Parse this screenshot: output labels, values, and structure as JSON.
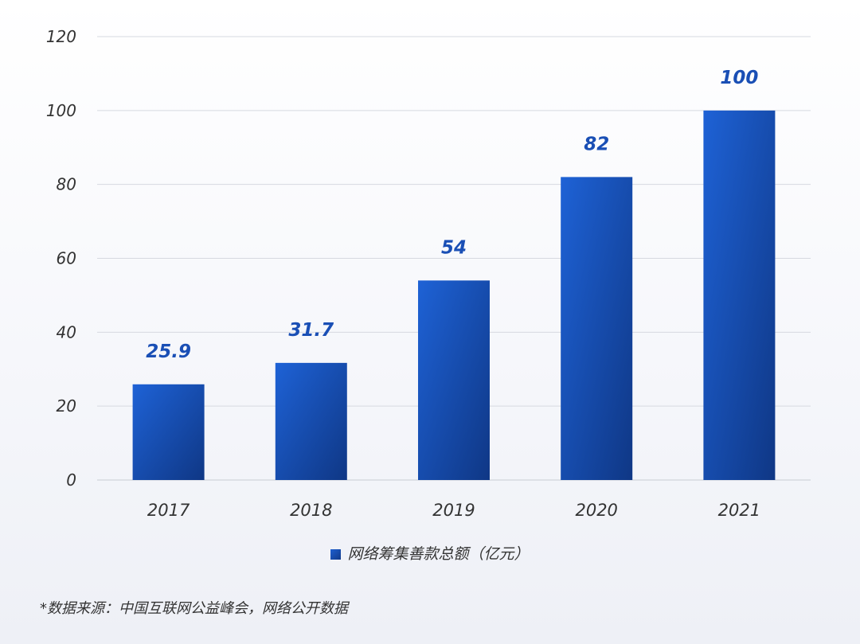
{
  "chart_data": {
    "type": "bar",
    "categories": [
      "2017",
      "2018",
      "2019",
      "2020",
      "2021"
    ],
    "series": [
      {
        "name": "网络筹集善款总额（亿元）",
        "values": [
          25.9,
          31.7,
          54,
          82,
          100
        ],
        "labels": [
          "25.9",
          "31.7",
          "54",
          "82",
          "100"
        ],
        "color": "#1a4fb5"
      }
    ],
    "ylim": [
      0,
      120
    ],
    "yticks": [
      0,
      20,
      40,
      60,
      80,
      100,
      120
    ],
    "grid": true,
    "legend_position": "bottom"
  },
  "legend": {
    "label": "网络筹集善款总额（亿元）"
  },
  "source": {
    "text": "*数据来源：中国互联网公益峰会，网络公开数据"
  }
}
